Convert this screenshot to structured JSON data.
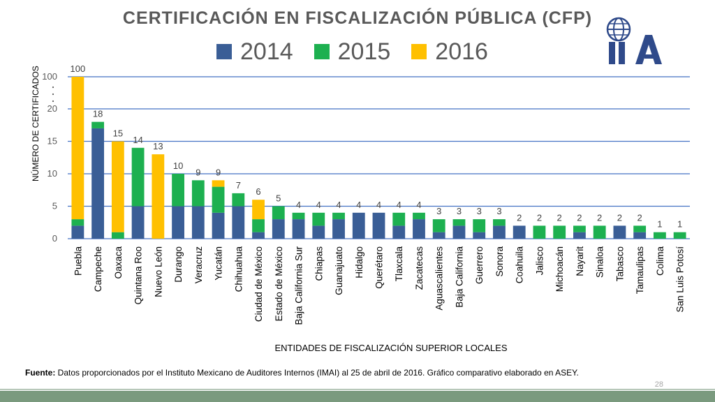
{
  "title": "CERTIFICACIÓN EN FISCALIZACIÓN PÚBLICA (CFP)",
  "legend": [
    {
      "label": "2014",
      "color": "#3A5E96"
    },
    {
      "label": "2015",
      "color": "#1DB050"
    },
    {
      "label": "2016",
      "color": "#FFC000"
    }
  ],
  "logo": {
    "text": "IIA",
    "icon": "globe-icon",
    "color": "#2F4A8A"
  },
  "source": {
    "prefix": "Fuente:",
    "text": " Datos proporcionados por el Instituto Mexicano de Auditores Internos (IMAI) al 25 de abril de 2016. Gráfico comparativo elaborado en ASEY."
  },
  "page_number": "28",
  "chart_data": {
    "type": "bar",
    "stacked": true,
    "title": "",
    "xlabel": "ENTIDADES DE FISCALIZACIÓN SUPERIOR LOCALES",
    "ylabel": "NÚMERO DE CERTIFICADOS",
    "y_ticks": [
      "0",
      "5",
      "10",
      "15",
      "20",
      "100"
    ],
    "y_axis_note": "broken axis: 20 jumps to 100",
    "grid": true,
    "legend_position": "top",
    "categories": [
      "Puebla",
      "Campeche",
      "Oaxaca",
      "Quintana Roo",
      "Nuevo León",
      "Durango",
      "Veracruz",
      "Yucatán",
      "Chihuahua",
      "Ciudad de México",
      "Estado de México",
      "Baja California Sur",
      "Chiapas",
      "Guanajuato",
      "Hidalgo",
      "Querétaro",
      "Tlaxcala",
      "Zacatecas",
      "Aguascalientes",
      "Baja California",
      "Guerrero",
      "Sonora",
      "Coahuila",
      "Jalisco",
      "Michoacán",
      "Nayarit",
      "Sinaloa",
      "Tabasco",
      "Tamaulipas",
      "Colima",
      "San Luis Potosí"
    ],
    "series": [
      {
        "name": "2014",
        "color": "#3A5E96",
        "values": [
          2,
          17,
          0,
          5,
          0,
          5,
          5,
          4,
          5,
          1,
          3,
          3,
          2,
          3,
          4,
          4,
          2,
          3,
          1,
          2,
          1,
          2,
          2,
          0,
          0,
          1,
          0,
          2,
          1,
          0,
          0
        ]
      },
      {
        "name": "2015",
        "color": "#1DB050",
        "values": [
          1,
          1,
          1,
          9,
          0,
          5,
          4,
          4,
          2,
          2,
          2,
          1,
          2,
          1,
          0,
          0,
          2,
          1,
          2,
          1,
          2,
          1,
          0,
          2,
          2,
          1,
          2,
          0,
          1,
          1,
          1
        ]
      },
      {
        "name": "2016",
        "color": "#FFC000",
        "values": [
          97,
          0,
          14,
          0,
          13,
          0,
          0,
          1,
          0,
          3,
          0,
          0,
          0,
          0,
          0,
          0,
          0,
          0,
          0,
          0,
          0,
          0,
          0,
          0,
          0,
          0,
          0,
          0,
          0,
          0,
          0
        ]
      }
    ],
    "totals": [
      "100",
      "18",
      "15",
      "14",
      "13",
      "10",
      "9",
      "9",
      "7",
      "6",
      "5",
      "4",
      "4",
      "4",
      "4",
      "4",
      "4",
      "4",
      "3",
      "3",
      "3",
      "3",
      "2",
      "2",
      "2",
      "2",
      "2",
      "2",
      "2",
      "1",
      "1"
    ]
  }
}
